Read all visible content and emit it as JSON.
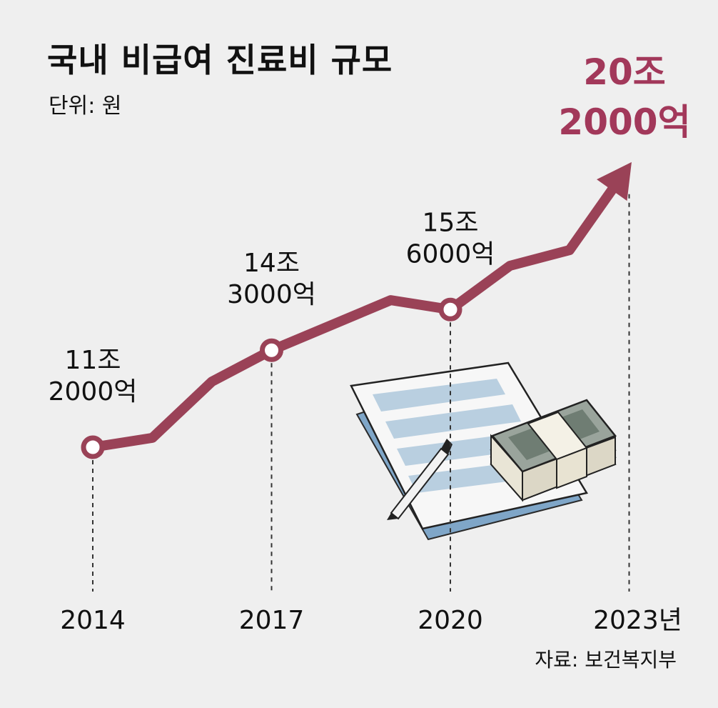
{
  "title": "국내 비급여 진료비 규모",
  "unit": "단위: 원",
  "source": "자료: 보건복지부",
  "colors": {
    "line": "#9a4257",
    "highlight": "#a2385a",
    "text": "#111111",
    "background": "#efefef"
  },
  "chart_data": {
    "type": "line",
    "title": "국내 비급여 진료비 규모",
    "unit": "단위: 원",
    "x": [
      2014,
      2015,
      2016,
      2017,
      2018,
      2019,
      2020,
      2021,
      2022,
      2023
    ],
    "xticks": [
      {
        "x": 2014,
        "label": "2014"
      },
      {
        "x": 2017,
        "label": "2017"
      },
      {
        "x": 2020,
        "label": "2020"
      },
      {
        "x": 2023,
        "label": "2023년"
      }
    ],
    "series": [
      {
        "values": [
          11.2,
          11.5,
          13.3,
          14.3,
          15.1,
          15.9,
          15.6,
          17.0,
          17.5,
          20.2
        ]
      }
    ],
    "annotations": [
      {
        "x": 2014,
        "lines": [
          "11조",
          "2000억"
        ],
        "highlight": false
      },
      {
        "x": 2017,
        "lines": [
          "14조",
          "3000억"
        ],
        "highlight": false
      },
      {
        "x": 2020,
        "lines": [
          "15조",
          "6000억"
        ],
        "highlight": false
      },
      {
        "x": 2023,
        "lines": [
          "20조",
          "2000억"
        ],
        "highlight": true
      }
    ],
    "marked_points": [
      2014,
      2017,
      2020
    ],
    "end_arrow": true,
    "grid": false,
    "legend": "none",
    "source": "자료: 보건복지부"
  }
}
